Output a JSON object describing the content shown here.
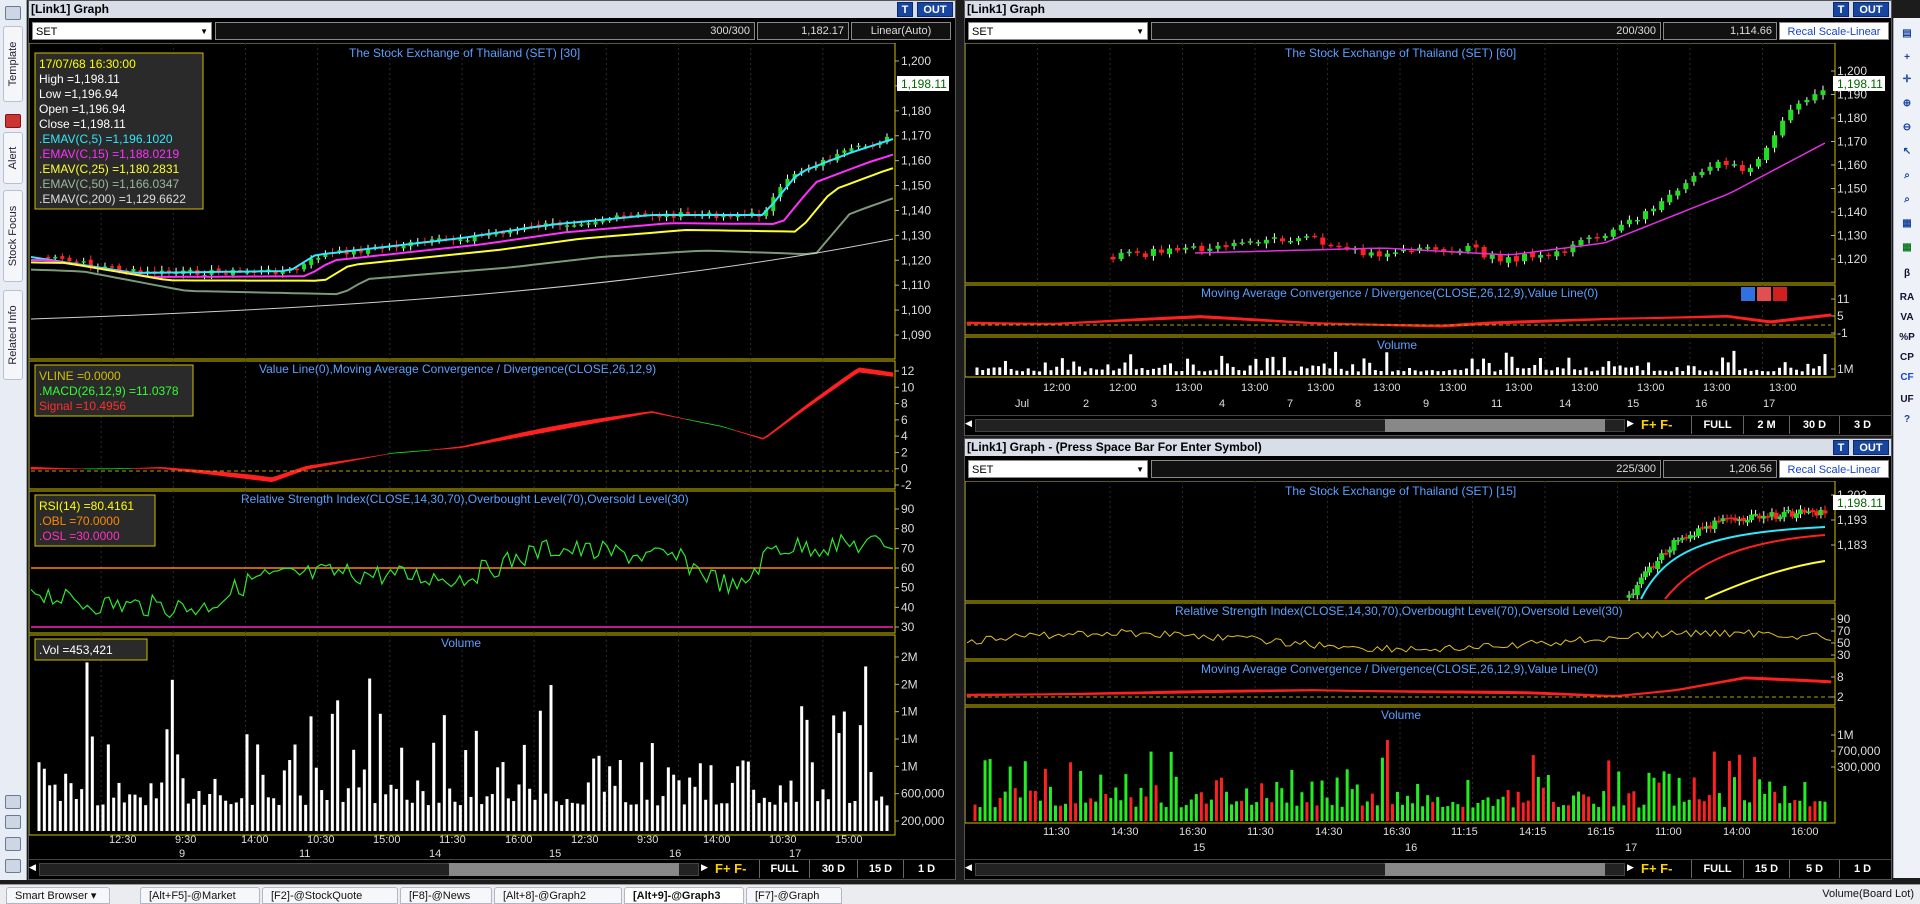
{
  "left_sidebar": {
    "tabs": [
      "Template",
      "Alert",
      "Stock Focus",
      "Related Info"
    ]
  },
  "right_toolbar": {
    "labels": [
      "β",
      "RA",
      "VA",
      "%P",
      "CP",
      "CF",
      "UF"
    ]
  },
  "panel_main": {
    "title": "[Link1] Graph",
    "btn_t": "T",
    "btn_out": "OUT",
    "symbol": "SET",
    "count": "300/300",
    "price": "1,182.17",
    "scale": "Linear(Auto)",
    "chart_title": "The Stock Exchange of Thailand (SET) [30]",
    "legend": [
      "17/07/68 16:30:00",
      "High =1,198.11",
      "Low =1,196.94",
      "Open =1,196.94",
      "Close =1,198.11",
      ".EMAV(C,5) =1,196.1020",
      ".EMAV(C,15) =1,188.0219",
      ".EMAV(C,25) =1,180.2831",
      ".EMAV(C,50) =1,166.0347",
      ".EMAV(C,200) =1,129.6622"
    ],
    "price_axis": [
      "1,200",
      "1,190",
      "1,180",
      "1,170",
      "1,160",
      "1,150",
      "1,140",
      "1,130",
      "1,120",
      "1,110",
      "1,100",
      "1,090"
    ],
    "last_price": "1,198.11",
    "macd_title": "Value Line(0),Moving Average Convergence / Divergence(CLOSE,26,12,9)",
    "macd_legend": [
      "VLINE =0.0000",
      ".MACD(26,12,9) =11.0378",
      "Signal =10.4956"
    ],
    "macd_axis": [
      "12",
      "10",
      "8",
      "6",
      "4",
      "2",
      "0",
      "-2"
    ],
    "rsi_title": "Relative Strength Index(CLOSE,14,30,70),Overbought Level(70),Oversold Level(30)",
    "rsi_legend": [
      "RSI(14) =80.4161",
      ".OBL =70.0000",
      ".OSL =30.0000"
    ],
    "rsi_axis": [
      "90",
      "80",
      "70",
      "60",
      "50",
      "40",
      "30"
    ],
    "vol_title": "Volume",
    "vol_legend": ".Vol =453,421",
    "vol_axis": [
      "2M",
      "2M",
      "1M",
      "1M",
      "1M",
      "600,000",
      "200,000"
    ],
    "time_labels": [
      "12:30",
      "9:30",
      "14:00",
      "10:30",
      "15:00",
      "11:30",
      "16:00",
      "12:30",
      "9:30",
      "14:00",
      "10:30",
      "15:00"
    ],
    "date_labels": [
      "9",
      "11",
      "14",
      "15",
      "16",
      "17"
    ],
    "scroll_buttons": [
      "FULL",
      "30 D",
      "15 D",
      "1 D"
    ]
  },
  "panel_tr": {
    "title": "[Link1] Graph",
    "btn_t": "T",
    "btn_out": "OUT",
    "symbol": "SET",
    "count": "200/300",
    "price": "1,114.66",
    "scale": "Recal Scale-Linear",
    "chart_title": "The Stock Exchange of Thailand (SET) [60]",
    "price_axis": [
      "1,200",
      "1,190",
      "1,180",
      "1,170",
      "1,160",
      "1,150",
      "1,140",
      "1,130",
      "1,120"
    ],
    "last_price": "1,198.11",
    "macd_title": "Moving Average Convergence / Divergence(CLOSE,26,12,9),Value Line(0)",
    "macd_axis": [
      "11",
      "5",
      "-1"
    ],
    "vol_title": "Volume",
    "vol_axis": [
      "1M"
    ],
    "time_labels": [
      "12:00",
      "12:00",
      "13:00",
      "13:00",
      "13:00",
      "13:00",
      "13:00",
      "13:00",
      "13:00",
      "13:00",
      "13:00",
      "13:00"
    ],
    "date_labels": [
      "Jul",
      "2",
      "3",
      "4",
      "7",
      "8",
      "9",
      "11",
      "14",
      "15",
      "16",
      "17"
    ],
    "scroll_buttons": [
      "FULL",
      "2 M",
      "30 D",
      "3 D"
    ]
  },
  "panel_br": {
    "title": "[Link1] Graph  - (Press Space Bar For Enter Symbol)",
    "btn_t": "T",
    "btn_out": "OUT",
    "symbol": "SET",
    "count": "225/300",
    "price": "1,206.56",
    "scale": "Recal Scale-Linear",
    "chart_title": "The Stock Exchange of Thailand (SET) [15]",
    "price_axis": [
      "1,203",
      "1,193",
      "1,183"
    ],
    "last_price": "1,198.11",
    "rsi_title": "Relative Strength Index(CLOSE,14,30,70),Overbought Level(70),Oversold Level(30)",
    "rsi_axis": [
      "90",
      "70",
      "50",
      "30"
    ],
    "macd_title": "Moving Average Convergence / Divergence(CLOSE,26,12,9),Value Line(0)",
    "macd_axis": [
      "8",
      "2"
    ],
    "vol_title": "Volume",
    "vol_axis": [
      "1M",
      "700,000",
      "300,000"
    ],
    "time_labels": [
      "11:30",
      "14:30",
      "16:30",
      "11:30",
      "14:30",
      "16:30",
      "11:15",
      "14:15",
      "16:15",
      "11:00",
      "14:00",
      "16:00"
    ],
    "date_labels": [
      "15",
      "16",
      "17"
    ],
    "scroll_buttons": [
      "FULL",
      "15 D",
      "5 D",
      "1 D"
    ]
  },
  "taskbar": {
    "smart_browser": "Smart Browser",
    "tabs": [
      "[Alt+F5]-@Market",
      "[F2]-@StockQuote",
      "[F8]-@News",
      "[Alt+8]-@Graph2",
      "[Alt+9]-@Graph3",
      "[F7]-@Graph"
    ],
    "right_label": "Volume(Board Lot)"
  }
}
